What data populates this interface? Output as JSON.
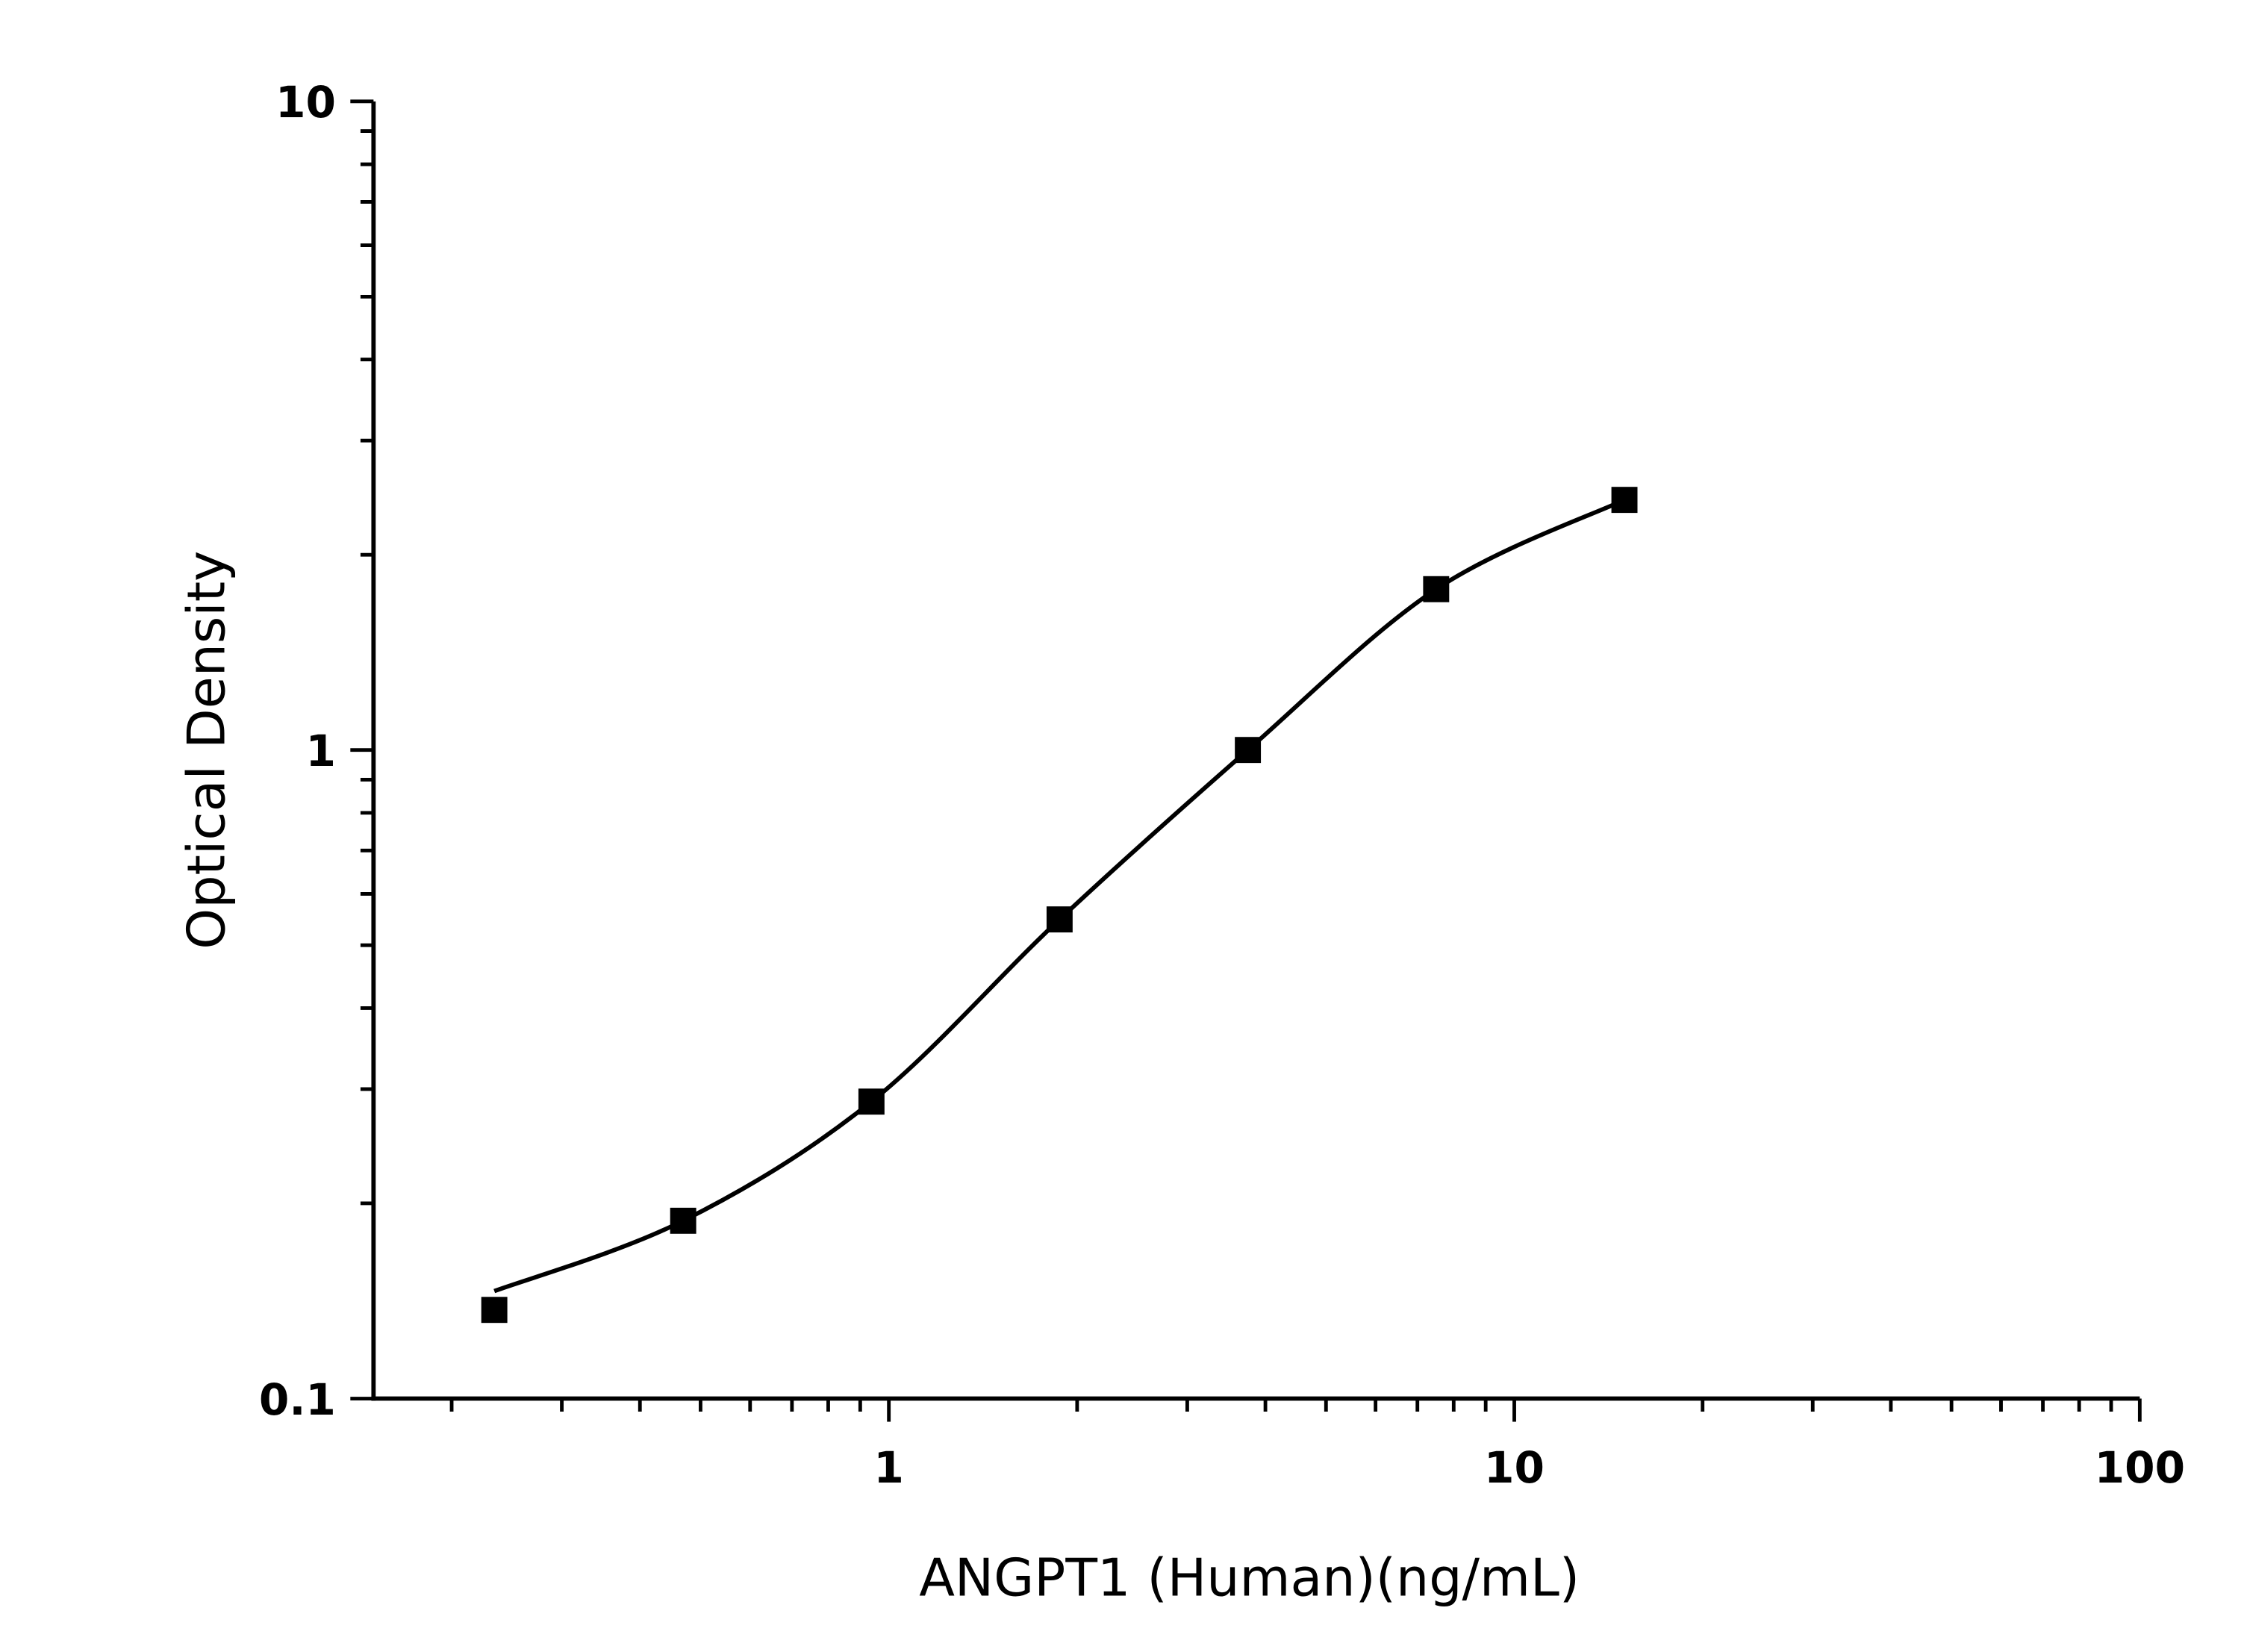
{
  "chart_data": {
    "type": "scatter",
    "title": "",
    "xlabel": "ANGPT1 (Human)(ng/mL)",
    "ylabel": "Optical Density",
    "x_scale": "log",
    "y_scale": "log",
    "xlim": [
      0.15,
      100
    ],
    "ylim": [
      0.1,
      10
    ],
    "x_ticks": [
      "1",
      "10",
      "100"
    ],
    "y_ticks": [
      "0.1",
      "1",
      "10"
    ],
    "grid": false,
    "legend": "none",
    "marker": "square",
    "color": "#000000",
    "series": [
      {
        "x": [
          0.234,
          0.469,
          0.938,
          1.875,
          3.75,
          7.5,
          15
        ],
        "y": [
          0.137,
          0.188,
          0.287,
          0.548,
          1.0,
          1.77,
          2.43
        ],
        "fit_curve": true
      }
    ]
  }
}
